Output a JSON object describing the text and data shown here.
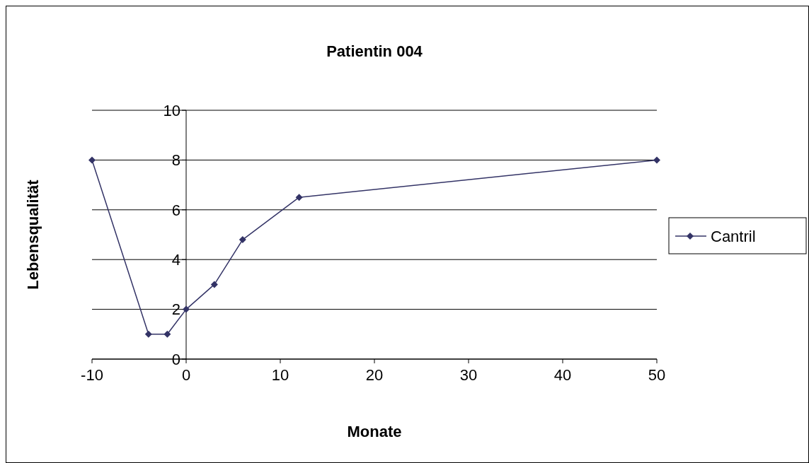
{
  "chart_data": {
    "type": "line",
    "title": "Patientin 004",
    "xlabel": "Monate",
    "ylabel": "Lebensqualität",
    "x": [
      -10,
      -4,
      -2,
      0,
      3,
      6,
      12,
      50
    ],
    "series": [
      {
        "name": "Cantril",
        "color": "#333366",
        "values": [
          8,
          1,
          1,
          2,
          3,
          4.8,
          6.5,
          8
        ]
      }
    ],
    "xlim": [
      -10,
      50
    ],
    "xticks": [
      -10,
      0,
      10,
      20,
      30,
      40,
      50
    ],
    "ylim": [
      0,
      10
    ],
    "yticks": [
      0,
      2,
      4,
      6,
      8,
      10
    ],
    "grid": "y",
    "legend": "right",
    "marker": "diamond",
    "line_style": "solid"
  }
}
